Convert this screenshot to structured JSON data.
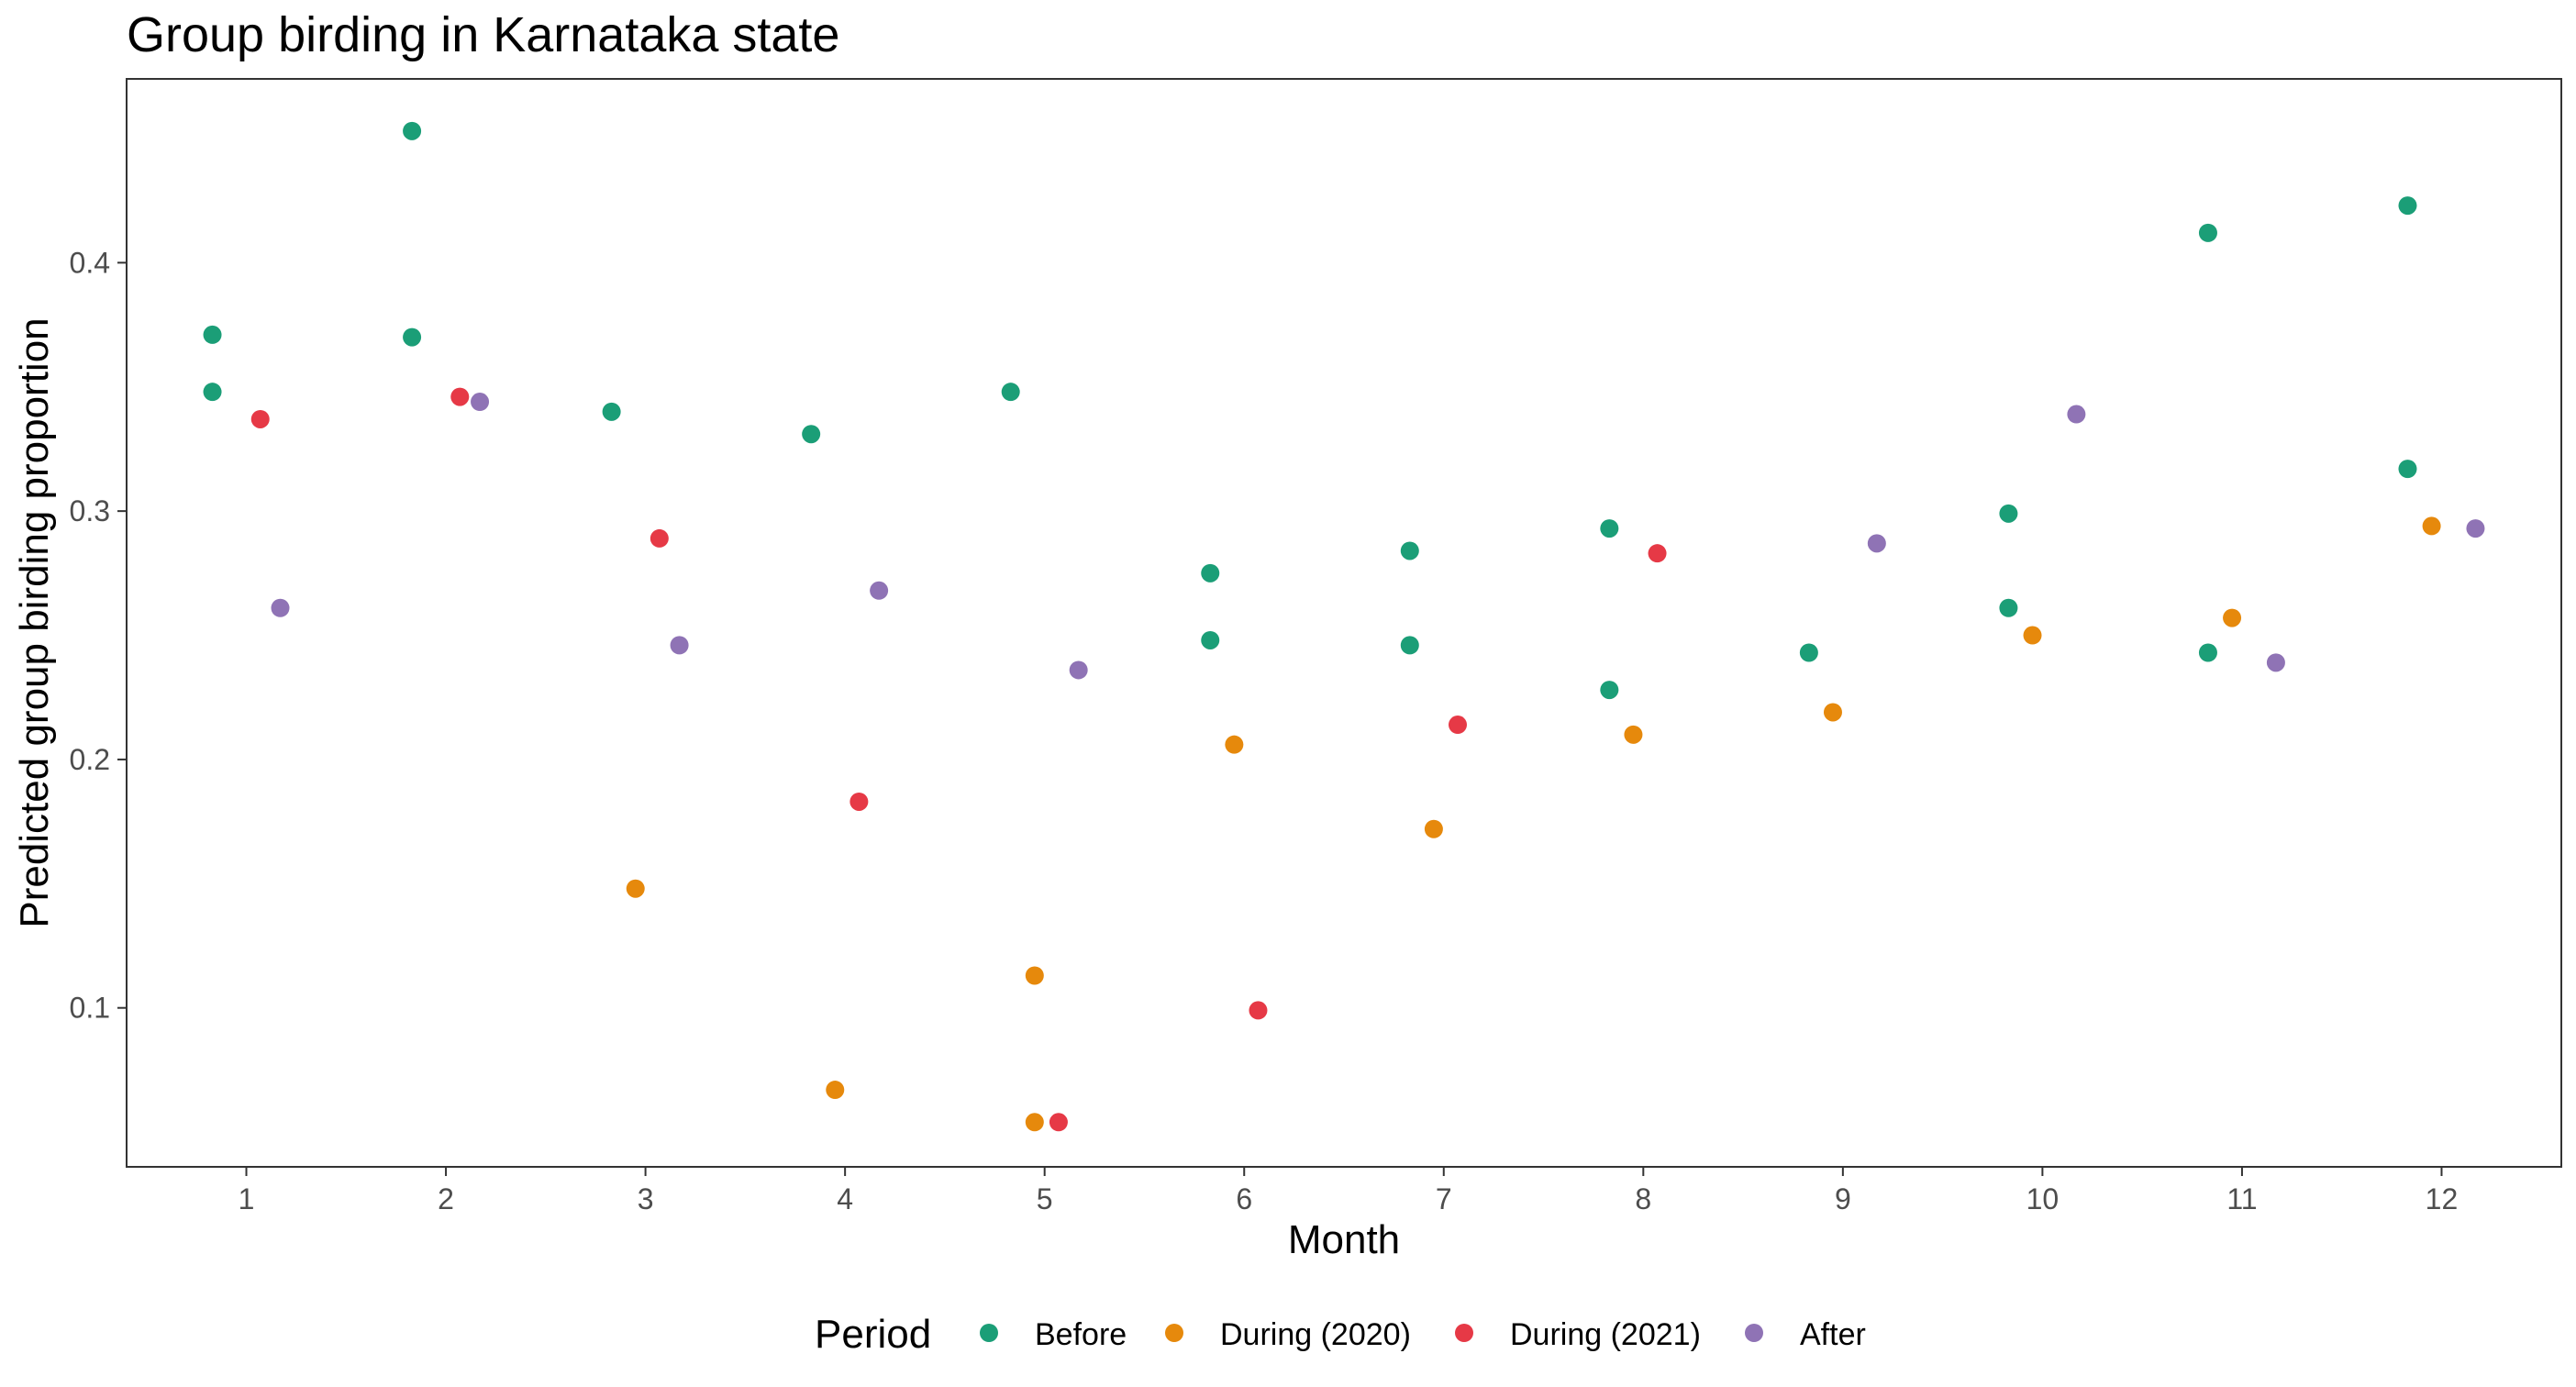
{
  "chart_data": {
    "type": "scatter",
    "title": "Group birding in Karnataka state",
    "xlabel": "Month",
    "ylabel": "Predicted group birding proportion",
    "xlim": [
      0.4,
      12.6
    ],
    "ylim": [
      0.036,
      0.474
    ],
    "x_ticks": [
      1,
      2,
      3,
      4,
      5,
      6,
      7,
      8,
      9,
      10,
      11,
      12
    ],
    "y_ticks": [
      0.1,
      0.2,
      0.3,
      0.4
    ],
    "y_tick_labels": [
      "0.1",
      "0.2",
      "0.3",
      "0.4"
    ],
    "grid": false,
    "legend": {
      "title": "Period",
      "position": "bottom"
    },
    "series": [
      {
        "name": "Before",
        "color": "#1b9e77",
        "x": [
          1,
          1,
          2,
          2,
          3,
          4,
          5,
          6,
          6,
          7,
          7,
          8,
          8,
          9,
          10,
          10,
          11,
          11,
          12,
          12
        ],
        "x_offset": -0.17,
        "values": [
          0.371,
          0.348,
          0.453,
          0.37,
          0.34,
          0.331,
          0.348,
          0.275,
          0.248,
          0.284,
          0.246,
          0.293,
          0.228,
          0.243,
          0.299,
          0.261,
          0.412,
          0.243,
          0.423,
          0.317
        ]
      },
      {
        "name": "During (2020)",
        "color": "#e6890c",
        "x": [
          3,
          4,
          5,
          5,
          6,
          7,
          8,
          9,
          10,
          11,
          12
        ],
        "x_offset": -0.05,
        "values": [
          0.148,
          0.067,
          0.113,
          0.054,
          0.206,
          0.172,
          0.21,
          0.219,
          0.25,
          0.257,
          0.294
        ]
      },
      {
        "name": "During (2021)",
        "color": "#e63946",
        "x": [
          1,
          2,
          3,
          4,
          5,
          6,
          7,
          8
        ],
        "x_offset": 0.07,
        "values": [
          0.337,
          0.346,
          0.289,
          0.183,
          0.054,
          0.099,
          0.214,
          0.283
        ]
      },
      {
        "name": "After",
        "color": "#8f73b5",
        "x": [
          1,
          2,
          3,
          4,
          5,
          9,
          10,
          11,
          12
        ],
        "x_offset": 0.17,
        "values": [
          0.261,
          0.344,
          0.246,
          0.268,
          0.236,
          0.287,
          0.339,
          0.239,
          0.293
        ]
      }
    ]
  }
}
